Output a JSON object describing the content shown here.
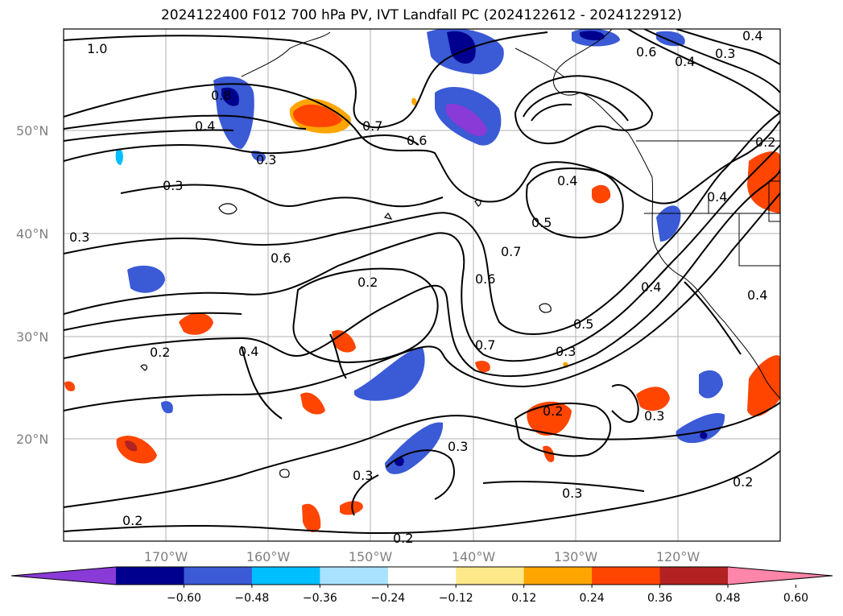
{
  "title": "2024122400 F012 700 hPa PV, IVT Landfall PC (2024122612 - 2024122912)",
  "lat_labels": [
    "50°N",
    "40°N",
    "30°N",
    "20°N"
  ],
  "lon_labels": [
    "170°W",
    "160°W",
    "150°W",
    "140°W",
    "130°W",
    "120°W"
  ],
  "contour_labels": [
    "1.0",
    "0.8",
    "0.4",
    "0.7",
    "0.6",
    "0.3",
    "0.3",
    "0.4",
    "0.5",
    "0.7",
    "0.6",
    "0.3",
    "0.6",
    "0.2",
    "0.2",
    "0.4",
    "0.4",
    "0.5",
    "0.3",
    "0.7",
    "0.2",
    "0.3",
    "0.3",
    "0.3",
    "0.2",
    "0.2",
    "0.2",
    "0.4",
    "0.4",
    "0.3",
    "0.4",
    "0.6",
    "0.4",
    "0.3",
    "0.2"
  ],
  "colorbar": {
    "colors": [
      "#8a3ad6",
      "#00008f",
      "#3a5ad6",
      "#00bfff",
      "#a8e2ff",
      "#ffffff",
      "#ffe88a",
      "#ffa500",
      "#ff4500",
      "#b22222",
      "#ff85aa"
    ],
    "ticks": [
      "−0.60",
      "−0.48",
      "−0.36",
      "−0.24",
      "−0.12",
      "0.12",
      "0.24",
      "0.36",
      "0.48",
      "0.60"
    ]
  },
  "colors": {
    "neg_strong": "#00008f",
    "neg_mid": "#3a5ad6",
    "neg_light": "#00bfff",
    "neg_purple": "#8a3ad6",
    "pos_light": "#ffe88a",
    "pos_orange": "#ffa500",
    "pos_red": "#ff4500",
    "pos_dark": "#b22222"
  }
}
